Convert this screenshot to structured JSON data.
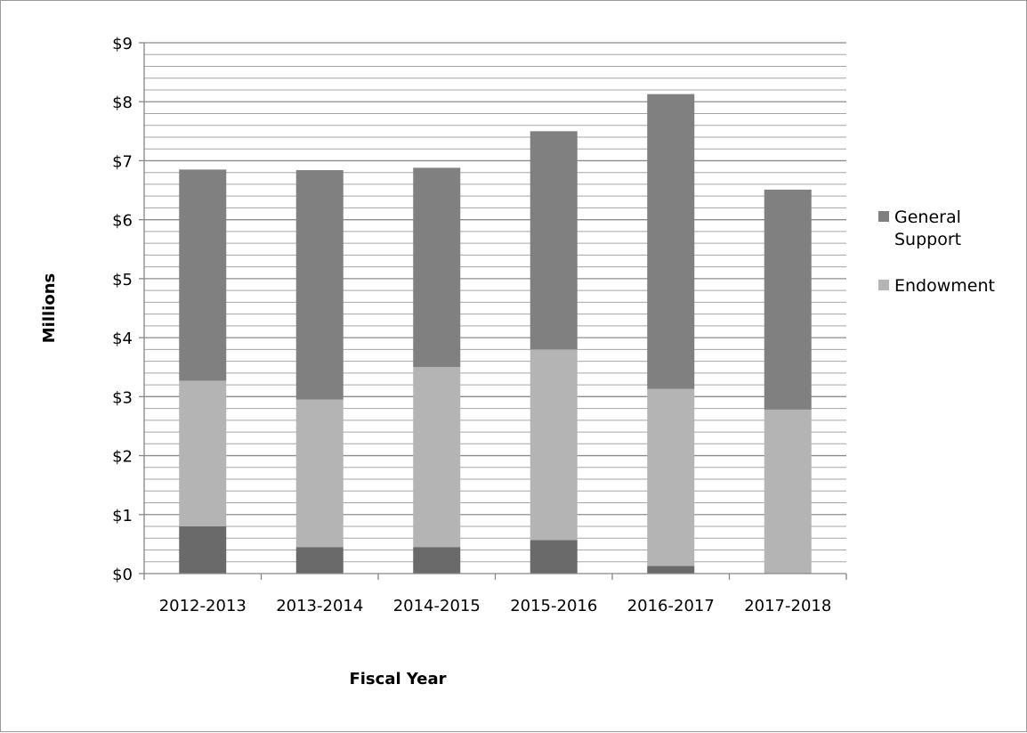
{
  "chart_data": {
    "type": "bar",
    "stacked": true,
    "title": "",
    "xlabel": "Fiscal Year",
    "ylabel": "Millions",
    "ylim": [
      0,
      9
    ],
    "grid": true,
    "legend_position": "right",
    "y_ticks": [
      "$0",
      "$1",
      "$2",
      "$3",
      "$4",
      "$5",
      "$6",
      "$7",
      "$8",
      "$9"
    ],
    "categories": [
      "2012-2013",
      "2013-2014",
      "2014-2015",
      "2015-2016",
      "2016-2017",
      "2017-2018"
    ],
    "series": [
      {
        "key": "base",
        "color": "#6a6a6a",
        "values": [
          0.8,
          0.45,
          0.45,
          0.57,
          0.13,
          0.0
        ]
      },
      {
        "key": "endowment",
        "name": "Endowment",
        "color": "#b4b4b4",
        "values": [
          2.47,
          2.5,
          3.05,
          3.23,
          3.0,
          2.78
        ]
      },
      {
        "key": "general",
        "name": "General Support",
        "color": "#808080",
        "values": [
          3.58,
          3.89,
          3.38,
          3.7,
          5.0,
          3.73
        ]
      }
    ],
    "legend": [
      {
        "key": "general",
        "lines": [
          "General",
          "Support"
        ],
        "color": "#808080"
      },
      {
        "key": "endowment",
        "lines": [
          "Endowment"
        ],
        "color": "#b4b4b4"
      }
    ]
  }
}
